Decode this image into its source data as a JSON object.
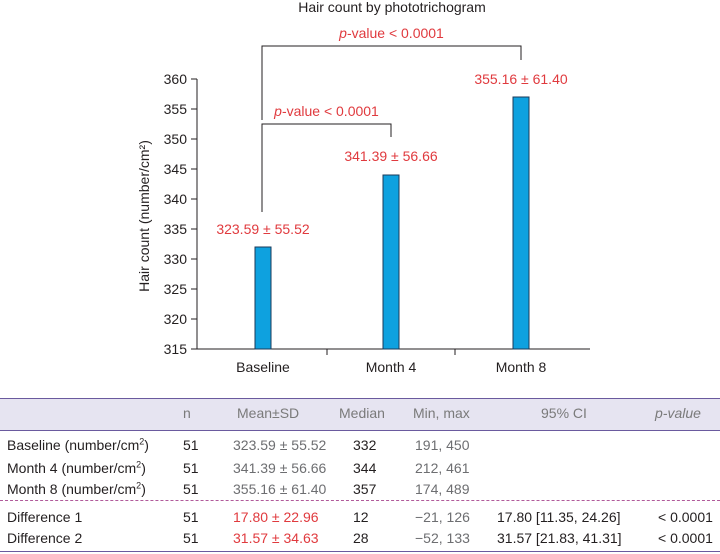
{
  "chart_data": {
    "type": "bar",
    "title": "Hair count by phototrichogram",
    "ylabel": "Hair count (number/cm²)",
    "xlabel": "",
    "categories": [
      "Baseline",
      "Month 4",
      "Month 8"
    ],
    "values": [
      332,
      344,
      357
    ],
    "bar_labels": [
      "323.59 ± 55.52",
      "341.39 ± 56.66",
      "355.16 ± 61.40"
    ],
    "ylim": [
      315,
      360
    ],
    "yticks": [
      315,
      320,
      325,
      330,
      335,
      340,
      345,
      350,
      355,
      360
    ],
    "bar_color": "#0ea1df",
    "label_color": "#e03a3e",
    "annotations": [
      {
        "text": "< 0.0001",
        "prefix": "p",
        "midfix": "-value ",
        "from": "Baseline",
        "to": "Month 4"
      },
      {
        "text": "< 0.0001",
        "prefix": "p",
        "midfix": "-value ",
        "from": "Baseline",
        "to": "Month 8"
      }
    ]
  },
  "table": {
    "headers": {
      "n": "n",
      "mean": "Mean±SD",
      "median": "Median",
      "minmax": "Min, max",
      "ci": "95% CI",
      "p": "p-value"
    },
    "rows": [
      {
        "label": "Baseline (number/cm",
        "sup": "2",
        "close": ")",
        "n": "51",
        "mean": "323.59 ± 55.52",
        "median": "332",
        "minmax": "191, 450",
        "ci": "",
        "p": ""
      },
      {
        "label": "Month 4 (number/cm",
        "sup": "2",
        "close": ")",
        "n": "51",
        "mean": "341.39 ± 56.66",
        "median": "344",
        "minmax": "212, 461",
        "ci": "",
        "p": ""
      },
      {
        "label": "Month 8 (number/cm",
        "sup": "2",
        "close": ")",
        "n": "51",
        "mean": "355.16 ± 61.40",
        "median": "357",
        "minmax": "174, 489",
        "ci": "",
        "p": ""
      },
      {
        "label": "Difference 1",
        "sup": "",
        "close": "",
        "n": "51",
        "mean": "17.80 ± 22.96",
        "median": "12",
        "minmax": "−21, 126",
        "ci": "17.80 [11.35, 24.26]",
        "p": "< 0.0001"
      },
      {
        "label": "Difference 2",
        "sup": "",
        "close": "",
        "n": "51",
        "mean": "31.57 ± 34.63",
        "median": "28",
        "minmax": "−52, 133",
        "ci": "31.57 [21.83, 41.31]",
        "p": "< 0.0001"
      }
    ]
  }
}
